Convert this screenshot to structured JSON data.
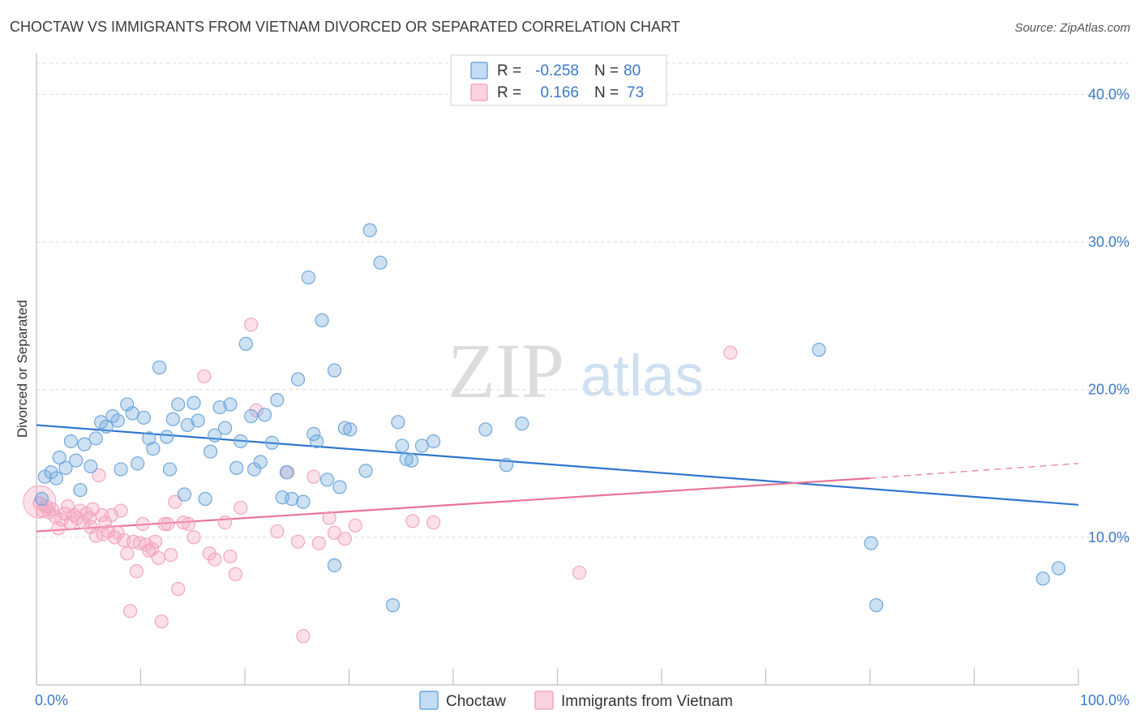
{
  "header": {
    "title": "CHOCTAW VS IMMIGRANTS FROM VIETNAM DIVORCED OR SEPARATED CORRELATION CHART",
    "source": "Source: ZipAtlas.com"
  },
  "watermark": {
    "zip": "ZIP",
    "atlas": "atlas"
  },
  "legend": {
    "rows": [
      {
        "r_label": "R =",
        "r_value": "-0.258",
        "n_label": "N =",
        "n_value": "80"
      },
      {
        "r_label": "R =",
        "r_value": "0.166",
        "n_label": "N =",
        "n_value": "73"
      }
    ]
  },
  "bottom_legend": {
    "choctaw": "Choctaw",
    "vietnam": "Immigrants from Vietnam"
  },
  "chart_data": {
    "type": "scatter",
    "title": "CHOCTAW VS IMMIGRANTS FROM VIETNAM DIVORCED OR SEPARATED CORRELATION CHART",
    "xlabel": "",
    "ylabel": "Divorced or Separated",
    "xlim": [
      0,
      100
    ],
    "ylim": [
      0,
      42
    ],
    "x_tick_labels": [
      "0.0%",
      "100.0%"
    ],
    "y_ticks": [
      10,
      20,
      30,
      40
    ],
    "y_tick_labels": [
      "10.0%",
      "20.0%",
      "30.0%",
      "40.0%"
    ],
    "grid": true,
    "legend_position": "top-center",
    "colors": {
      "choctaw": "#6fa8dc",
      "choctaw_line": "#2f74d0",
      "vietnam": "#f4a6bf",
      "vietnam_line": "#e8749a"
    },
    "series": [
      {
        "name": "Choctaw",
        "r": -0.258,
        "n": 80,
        "trend": {
          "x": [
            0,
            100
          ],
          "y": [
            17.6,
            12.2
          ]
        },
        "points": [
          [
            0.5,
            12.6
          ],
          [
            0.8,
            14.1
          ],
          [
            1.4,
            14.4
          ],
          [
            1.9,
            14.0
          ],
          [
            2.2,
            15.4
          ],
          [
            2.8,
            14.7
          ],
          [
            3.3,
            16.5
          ],
          [
            3.8,
            15.2
          ],
          [
            4.2,
            13.2
          ],
          [
            4.6,
            16.3
          ],
          [
            5.2,
            14.8
          ],
          [
            5.7,
            16.7
          ],
          [
            6.2,
            17.8
          ],
          [
            6.7,
            17.5
          ],
          [
            7.3,
            18.2
          ],
          [
            7.8,
            17.9
          ],
          [
            8.1,
            14.6
          ],
          [
            8.7,
            19.0
          ],
          [
            9.2,
            18.4
          ],
          [
            9.7,
            15.0
          ],
          [
            10.3,
            18.1
          ],
          [
            10.8,
            16.7
          ],
          [
            11.2,
            16.0
          ],
          [
            11.8,
            21.5
          ],
          [
            12.5,
            16.8
          ],
          [
            12.8,
            14.6
          ],
          [
            13.1,
            18.0
          ],
          [
            13.6,
            19.0
          ],
          [
            14.2,
            12.9
          ],
          [
            14.5,
            17.6
          ],
          [
            15.1,
            19.1
          ],
          [
            15.5,
            17.9
          ],
          [
            16.2,
            12.6
          ],
          [
            16.7,
            15.8
          ],
          [
            17.1,
            16.9
          ],
          [
            17.6,
            18.8
          ],
          [
            18.1,
            17.4
          ],
          [
            18.6,
            19.0
          ],
          [
            19.2,
            14.7
          ],
          [
            19.6,
            16.5
          ],
          [
            20.1,
            23.1
          ],
          [
            20.6,
            18.2
          ],
          [
            20.9,
            14.6
          ],
          [
            21.5,
            15.1
          ],
          [
            21.9,
            18.3
          ],
          [
            22.6,
            16.4
          ],
          [
            23.1,
            19.3
          ],
          [
            23.6,
            12.7
          ],
          [
            24.0,
            14.4
          ],
          [
            24.5,
            12.6
          ],
          [
            25.1,
            20.7
          ],
          [
            25.6,
            12.4
          ],
          [
            26.1,
            27.6
          ],
          [
            26.6,
            17.0
          ],
          [
            26.9,
            16.5
          ],
          [
            27.4,
            24.7
          ],
          [
            27.9,
            13.9
          ],
          [
            28.6,
            21.3
          ],
          [
            29.1,
            13.4
          ],
          [
            29.6,
            17.4
          ],
          [
            30.1,
            17.3
          ],
          [
            31.6,
            14.5
          ],
          [
            32.0,
            30.8
          ],
          [
            33.0,
            28.6
          ],
          [
            34.2,
            5.4
          ],
          [
            34.7,
            17.8
          ],
          [
            35.1,
            16.2
          ],
          [
            35.5,
            15.3
          ],
          [
            36.0,
            15.2
          ],
          [
            37.0,
            16.2
          ],
          [
            38.1,
            16.5
          ],
          [
            43.1,
            17.3
          ],
          [
            45.1,
            14.9
          ],
          [
            46.6,
            17.7
          ],
          [
            28.6,
            8.1
          ],
          [
            75.1,
            22.7
          ],
          [
            80.1,
            9.6
          ],
          [
            80.6,
            5.4
          ],
          [
            96.6,
            7.2
          ],
          [
            98.1,
            7.9
          ]
        ]
      },
      {
        "name": "Immigrants from Vietnam",
        "r": 0.166,
        "n": 73,
        "trend": {
          "x": [
            0,
            80
          ],
          "y": [
            10.4,
            14.0
          ]
        },
        "trend_dashed": {
          "x": [
            80,
            100
          ],
          "y": [
            14.0,
            15.0
          ]
        },
        "points": [
          [
            0.3,
            12.3
          ],
          [
            0.6,
            11.8
          ],
          [
            0.9,
            12.1
          ],
          [
            1.2,
            11.7
          ],
          [
            1.5,
            11.9
          ],
          [
            1.8,
            11.4
          ],
          [
            2.1,
            10.6
          ],
          [
            2.4,
            11.2
          ],
          [
            2.7,
            11.6
          ],
          [
            3.0,
            12.1
          ],
          [
            3.3,
            11.0
          ],
          [
            3.6,
            11.5
          ],
          [
            3.9,
            11.3
          ],
          [
            4.2,
            11.8
          ],
          [
            4.5,
            11.0
          ],
          [
            4.8,
            11.6
          ],
          [
            5.1,
            11.3
          ],
          [
            5.4,
            11.9
          ],
          [
            5.7,
            10.1
          ],
          [
            6.0,
            14.2
          ],
          [
            6.3,
            11.5
          ],
          [
            6.6,
            11.0
          ],
          [
            6.9,
            10.4
          ],
          [
            7.2,
            11.5
          ],
          [
            7.5,
            10.0
          ],
          [
            7.8,
            10.3
          ],
          [
            8.1,
            11.8
          ],
          [
            8.4,
            9.8
          ],
          [
            8.7,
            8.9
          ],
          [
            9.0,
            5.0
          ],
          [
            9.3,
            9.7
          ],
          [
            9.6,
            7.7
          ],
          [
            9.9,
            9.6
          ],
          [
            10.2,
            10.9
          ],
          [
            10.5,
            9.5
          ],
          [
            10.8,
            9.1
          ],
          [
            11.1,
            9.2
          ],
          [
            11.4,
            9.7
          ],
          [
            11.7,
            8.6
          ],
          [
            12.0,
            4.3
          ],
          [
            12.3,
            10.9
          ],
          [
            12.6,
            10.9
          ],
          [
            12.9,
            8.8
          ],
          [
            13.3,
            12.4
          ],
          [
            13.6,
            6.5
          ],
          [
            14.1,
            11.0
          ],
          [
            14.6,
            10.9
          ],
          [
            15.1,
            10.0
          ],
          [
            16.1,
            20.9
          ],
          [
            16.6,
            8.9
          ],
          [
            17.1,
            8.5
          ],
          [
            18.1,
            11.0
          ],
          [
            18.6,
            8.7
          ],
          [
            19.1,
            7.5
          ],
          [
            19.6,
            12.0
          ],
          [
            20.6,
            24.4
          ],
          [
            21.1,
            18.6
          ],
          [
            23.1,
            10.4
          ],
          [
            24.1,
            14.4
          ],
          [
            25.1,
            9.7
          ],
          [
            25.6,
            3.3
          ],
          [
            26.6,
            14.1
          ],
          [
            27.1,
            9.6
          ],
          [
            28.1,
            11.3
          ],
          [
            28.6,
            10.3
          ],
          [
            29.6,
            9.9
          ],
          [
            30.6,
            10.8
          ],
          [
            36.1,
            11.1
          ],
          [
            38.1,
            11.0
          ],
          [
            52.1,
            7.6
          ],
          [
            66.6,
            22.5
          ],
          [
            5.2,
            10.7
          ],
          [
            6.4,
            10.2
          ]
        ]
      }
    ]
  }
}
